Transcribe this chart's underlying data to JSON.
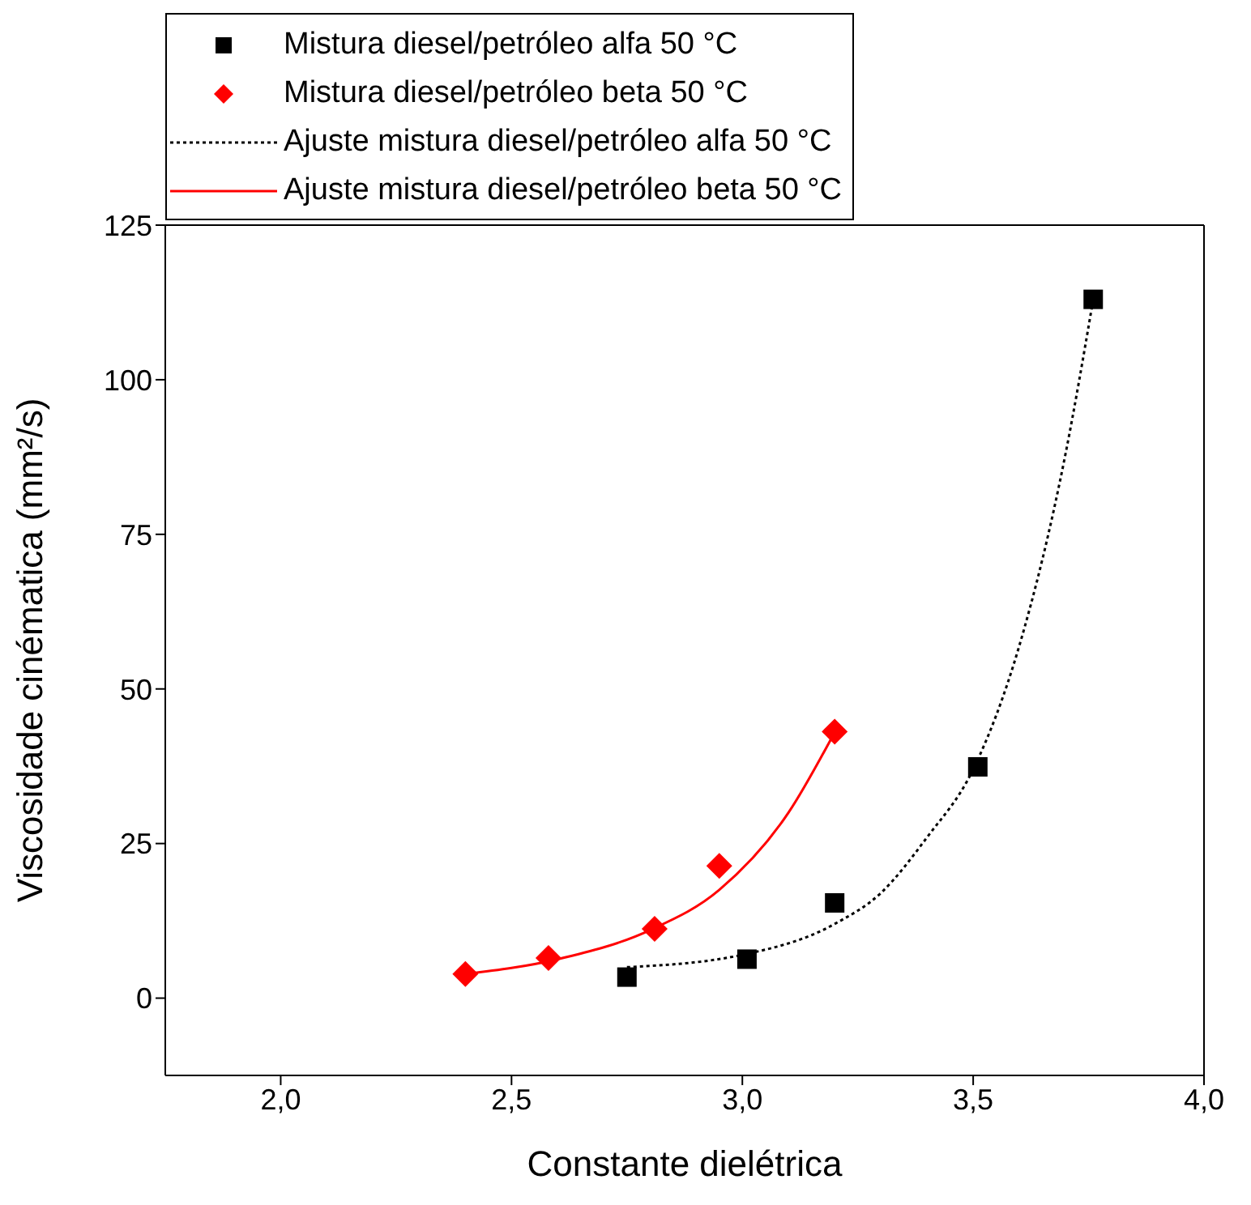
{
  "chart_data": {
    "type": "scatter",
    "xlabel": "Constante dielétrica",
    "ylabel": "Viscosidade cinématica (mm²/s)",
    "xlim": [
      1.75,
      4.0
    ],
    "xticks": [
      {
        "value": 2.0,
        "label": "2,0"
      },
      {
        "value": 2.5,
        "label": "2,5"
      },
      {
        "value": 3.0,
        "label": "3,0"
      },
      {
        "value": 3.5,
        "label": "3,5"
      },
      {
        "value": 4.0,
        "label": "4,0"
      }
    ],
    "ylim": [
      -12.5,
      125
    ],
    "yticks": [
      0,
      25,
      50,
      75,
      100,
      125
    ],
    "legend": "top",
    "series": [
      {
        "name": "Mistura diesel/petróleo alfa 50 °C",
        "marker": "square",
        "color": "#000000",
        "x": [
          2.75,
          3.01,
          3.2,
          3.51,
          3.76
        ],
        "values": [
          3.4,
          6.3,
          15.4,
          37.4,
          113
        ]
      },
      {
        "name": "Mistura diesel/petróleo beta 50 °C",
        "marker": "diamond",
        "color": "#ff0000",
        "x": [
          2.4,
          2.58,
          2.81,
          2.95,
          3.2
        ],
        "values": [
          3.9,
          6.5,
          11.2,
          21.4,
          43.1
        ]
      },
      {
        "name": "Ajuste mistura diesel/petróleo alfa 50 °C",
        "type": "line",
        "marker": "none",
        "line_style": "dotted",
        "color": "#000000",
        "x": [
          2.75,
          3.0,
          3.2,
          3.3,
          3.4,
          3.5,
          3.6,
          3.7,
          3.76
        ],
        "values": [
          5,
          7,
          12,
          17,
          26,
          37,
          57,
          88,
          113
        ]
      },
      {
        "name": "Ajuste mistura diesel/petróleo beta 50 °C",
        "type": "line",
        "marker": "none",
        "line_style": "solid",
        "color": "#ff0000",
        "x": [
          2.4,
          2.6,
          2.8,
          2.95,
          3.1,
          3.2
        ],
        "values": [
          3.9,
          6.3,
          11,
          17.5,
          30,
          43
        ]
      }
    ]
  }
}
